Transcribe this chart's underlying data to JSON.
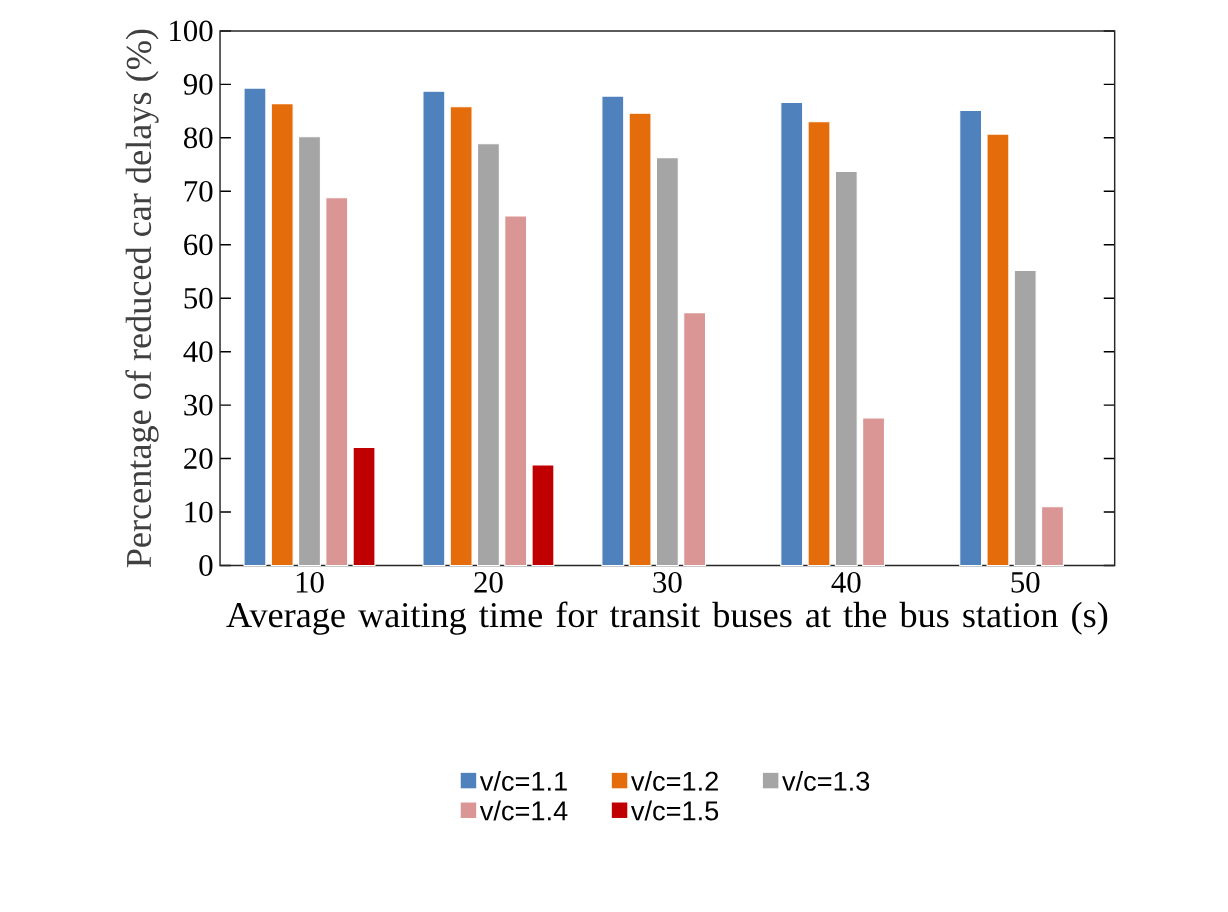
{
  "chart_data": {
    "type": "bar",
    "xlabel": "Average waiting time for transit buses at the bus station (s)",
    "ylabel": "Percentage of reduced car delays (%)",
    "categories": [
      "10",
      "20",
      "30",
      "40",
      "50"
    ],
    "series": [
      {
        "name": "v/c=1.1",
        "color": "#4f81bd",
        "values": [
          89.3,
          88.7,
          87.8,
          86.6,
          85.1
        ]
      },
      {
        "name": "v/c=1.2",
        "color": "#e46c0a",
        "values": [
          86.4,
          85.8,
          84.6,
          83.0,
          80.7
        ]
      },
      {
        "name": "v/c=1.3",
        "color": "#a5a5a5",
        "values": [
          80.2,
          78.9,
          76.3,
          73.7,
          55.2
        ]
      },
      {
        "name": "v/c=1.4",
        "color": "#d99694",
        "values": [
          68.8,
          65.4,
          47.3,
          27.6,
          11.0
        ]
      },
      {
        "name": "v/c=1.5",
        "color": "#c00000",
        "values": [
          22.1,
          18.8,
          null,
          null,
          null
        ]
      }
    ],
    "ylim": [
      0,
      100
    ],
    "yticks": [
      0,
      10,
      20,
      30,
      40,
      50,
      60,
      70,
      80,
      90,
      100
    ],
    "legend": "bottom"
  }
}
